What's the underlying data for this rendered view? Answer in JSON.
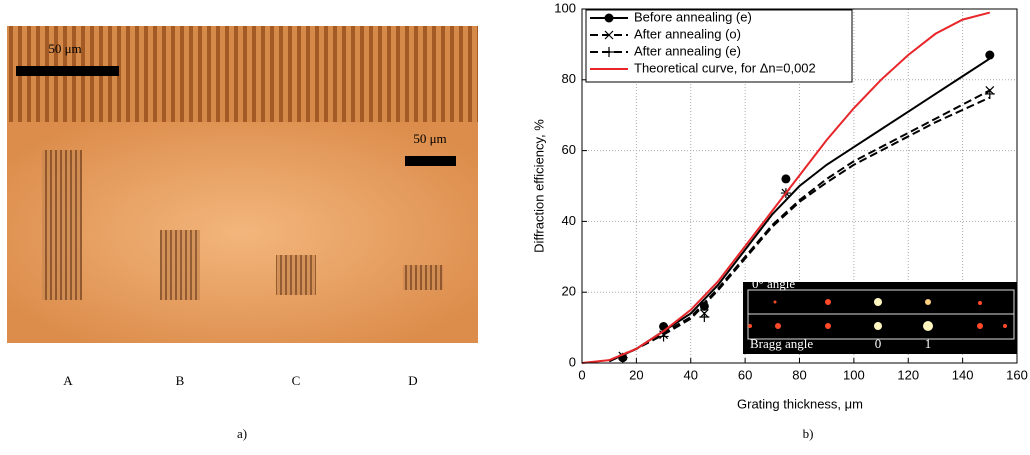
{
  "figure": {
    "panel_a": {
      "scale_top": "50 μm",
      "scale_bottom": "50 μm",
      "labels": [
        "A",
        "B",
        "C",
        "D"
      ],
      "caption": "a)"
    },
    "panel_b": {
      "caption": "b)",
      "inset": {
        "top": "0° angle",
        "bottom": "Bragg angle",
        "order0": "0",
        "order1": "1"
      }
    }
  },
  "chart_data": {
    "type": "line",
    "x_label": "Grating thickness, μm",
    "y_label": "Diffraction efficiency, %",
    "xlim": [
      0,
      160
    ],
    "xticks": [
      0,
      20,
      40,
      60,
      80,
      100,
      120,
      140,
      160
    ],
    "ylim": [
      0,
      100
    ],
    "yticks": [
      0,
      20,
      40,
      60,
      80,
      100
    ],
    "grid": true,
    "legend": "upper left",
    "series": [
      {
        "name": "Before annealing (e)",
        "color": "#000000",
        "marker": "circle",
        "dash": "solid",
        "x": [
          15,
          30,
          45,
          75,
          150
        ],
        "values": [
          1.5,
          10.3,
          16,
          52,
          87
        ],
        "curve_x": [
          10,
          20,
          30,
          40,
          50,
          60,
          70,
          75,
          80,
          90,
          100,
          110,
          120,
          130,
          140,
          150
        ],
        "curve_values": [
          0.5,
          4,
          9,
          14,
          22,
          32,
          42,
          46,
          50,
          56,
          61,
          66,
          71,
          76,
          81,
          86
        ]
      },
      {
        "name": "After annealing (o)",
        "color": "#000000",
        "marker": "x",
        "dash": "dashed",
        "x": [
          15,
          30,
          45,
          75,
          150
        ],
        "values": [
          2,
          8,
          14,
          48,
          77
        ],
        "curve_x": [
          10,
          20,
          30,
          40,
          50,
          60,
          70,
          80,
          90,
          100,
          110,
          120,
          130,
          140,
          150
        ],
        "curve_values": [
          0.5,
          4,
          8.5,
          13,
          21,
          30,
          39,
          46,
          52,
          57,
          61,
          65,
          69,
          73,
          77
        ]
      },
      {
        "name": "After annealing (e)",
        "color": "#000000",
        "marker": "plus",
        "dash": "dashed",
        "x": [
          15,
          30,
          45,
          75,
          150
        ],
        "values": [
          1.5,
          7.5,
          13,
          48,
          76
        ],
        "curve_x": [
          10,
          20,
          30,
          40,
          50,
          60,
          70,
          80,
          90,
          100,
          110,
          120,
          130,
          140,
          150
        ],
        "curve_values": [
          0.5,
          4,
          8,
          12.5,
          20.5,
          29.5,
          38.5,
          45.5,
          51,
          56,
          60,
          64,
          68,
          71.5,
          75
        ]
      },
      {
        "name": "Theoretical curve, for Δn=0,002",
        "color": "#e8262a",
        "marker": "none",
        "dash": "solid",
        "curve_x": [
          0,
          10,
          20,
          30,
          40,
          50,
          60,
          70,
          80,
          90,
          100,
          110,
          120,
          130,
          140,
          150
        ],
        "curve_values": [
          0,
          0.8,
          4,
          9,
          15,
          23,
          33,
          43,
          53,
          63,
          72,
          80,
          87,
          93,
          97,
          99
        ]
      }
    ]
  }
}
